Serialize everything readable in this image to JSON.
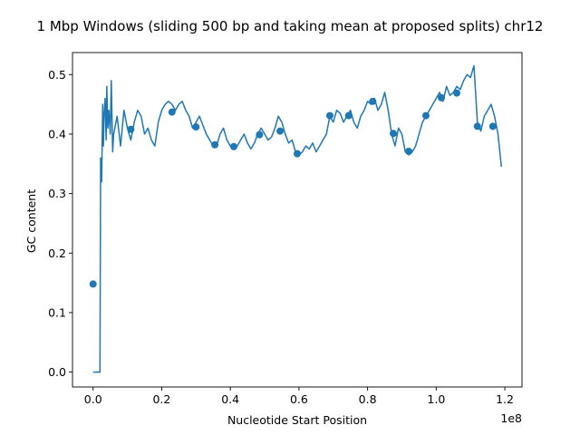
{
  "chart_data": {
    "type": "line",
    "title": "1 Mbp Windows (sliding 500 bp and taking mean at proposed splits) chr12",
    "xlabel": "Nucleotide Start Position",
    "ylabel": "GC content",
    "x_offset_label": "1e8",
    "xlim": [
      -6000000,
      125000000
    ],
    "ylim": [
      -0.025,
      0.537
    ],
    "x_ticks": [
      0,
      20000000,
      40000000,
      60000000,
      80000000,
      100000000,
      120000000
    ],
    "x_tick_labels": [
      "0.0",
      "0.2",
      "0.4",
      "0.6",
      "0.8",
      "1.0",
      "1.2"
    ],
    "y_ticks": [
      0.0,
      0.1,
      0.2,
      0.3,
      0.4,
      0.5
    ],
    "y_tick_labels": [
      "0.0",
      "0.1",
      "0.2",
      "0.3",
      "0.4",
      "0.5"
    ],
    "grid": false,
    "color": "#1f77b4",
    "series": [
      {
        "kind": "line",
        "x": [
          0,
          2000000,
          2200000,
          2500000,
          2800000,
          3000000,
          3200000,
          3500000,
          3800000,
          4000000,
          4300000,
          4600000,
          5000000,
          5300000,
          5700000,
          6000000,
          7000000,
          8000000,
          9000000,
          10000000,
          11000000,
          12000000,
          13000000,
          14000000,
          15000000,
          16000000,
          17000000,
          18000000,
          19000000,
          20000000,
          21000000,
          22000000,
          23000000,
          24000000,
          25000000,
          26000000,
          27000000,
          28000000,
          29000000,
          30000000,
          31000000,
          32000000,
          33000000,
          34000000,
          35000000,
          36000000,
          37000000,
          38000000,
          39000000,
          40000000,
          41000000,
          42000000,
          43000000,
          44000000,
          45000000,
          46000000,
          47000000,
          48000000,
          49000000,
          50000000,
          51000000,
          52000000,
          53000000,
          54000000,
          55000000,
          56000000,
          57000000,
          58000000,
          59000000,
          60000000,
          61000000,
          62000000,
          63000000,
          64000000,
          65000000,
          66000000,
          67000000,
          68000000,
          69000000,
          70000000,
          71000000,
          72000000,
          73000000,
          74000000,
          75000000,
          76000000,
          77000000,
          78000000,
          79000000,
          80000000,
          81000000,
          82000000,
          83000000,
          84000000,
          85000000,
          86000000,
          87000000,
          88000000,
          89000000,
          90000000,
          91000000,
          92000000,
          93000000,
          94000000,
          95000000,
          96000000,
          97000000,
          98000000,
          99000000,
          100000000,
          101000000,
          102000000,
          103000000,
          104000000,
          105000000,
          106000000,
          107000000,
          108000000,
          109000000,
          110000000,
          111000000,
          112000000,
          113000000,
          114000000,
          115000000,
          116000000,
          117000000,
          118000000,
          119000000
        ],
        "y": [
          0.0,
          0.0,
          0.36,
          0.32,
          0.45,
          0.38,
          0.43,
          0.46,
          0.39,
          0.48,
          0.41,
          0.44,
          0.4,
          0.49,
          0.37,
          0.4,
          0.43,
          0.38,
          0.44,
          0.41,
          0.39,
          0.42,
          0.44,
          0.43,
          0.4,
          0.41,
          0.39,
          0.38,
          0.42,
          0.44,
          0.45,
          0.455,
          0.45,
          0.44,
          0.45,
          0.455,
          0.44,
          0.43,
          0.41,
          0.42,
          0.43,
          0.415,
          0.4,
          0.39,
          0.38,
          0.38,
          0.4,
          0.41,
          0.39,
          0.38,
          0.375,
          0.38,
          0.39,
          0.4,
          0.385,
          0.375,
          0.385,
          0.4,
          0.41,
          0.4,
          0.39,
          0.395,
          0.41,
          0.43,
          0.42,
          0.4,
          0.385,
          0.39,
          0.37,
          0.365,
          0.37,
          0.38,
          0.375,
          0.385,
          0.37,
          0.38,
          0.39,
          0.4,
          0.43,
          0.42,
          0.44,
          0.435,
          0.42,
          0.43,
          0.44,
          0.42,
          0.41,
          0.43,
          0.44,
          0.455,
          0.45,
          0.46,
          0.44,
          0.45,
          0.47,
          0.44,
          0.4,
          0.38,
          0.41,
          0.4,
          0.37,
          0.365,
          0.37,
          0.38,
          0.4,
          0.42,
          0.43,
          0.44,
          0.45,
          0.46,
          0.47,
          0.455,
          0.48,
          0.465,
          0.47,
          0.48,
          0.475,
          0.49,
          0.5,
          0.495,
          0.515,
          0.42,
          0.405,
          0.43,
          0.44,
          0.45,
          0.43,
          0.4,
          0.345
        ]
      },
      {
        "kind": "scatter",
        "x": [
          0,
          11000000,
          23000000,
          30000000,
          35500000,
          41000000,
          48500000,
          54500000,
          59500000,
          69000000,
          74500000,
          81500000,
          87500000,
          92000000,
          97000000,
          101500000,
          106000000,
          112000000,
          116500000
        ],
        "y": [
          0.148,
          0.408,
          0.437,
          0.412,
          0.382,
          0.379,
          0.399,
          0.405,
          0.367,
          0.431,
          0.431,
          0.455,
          0.401,
          0.371,
          0.431,
          0.461,
          0.469,
          0.413,
          0.413
        ]
      }
    ]
  }
}
